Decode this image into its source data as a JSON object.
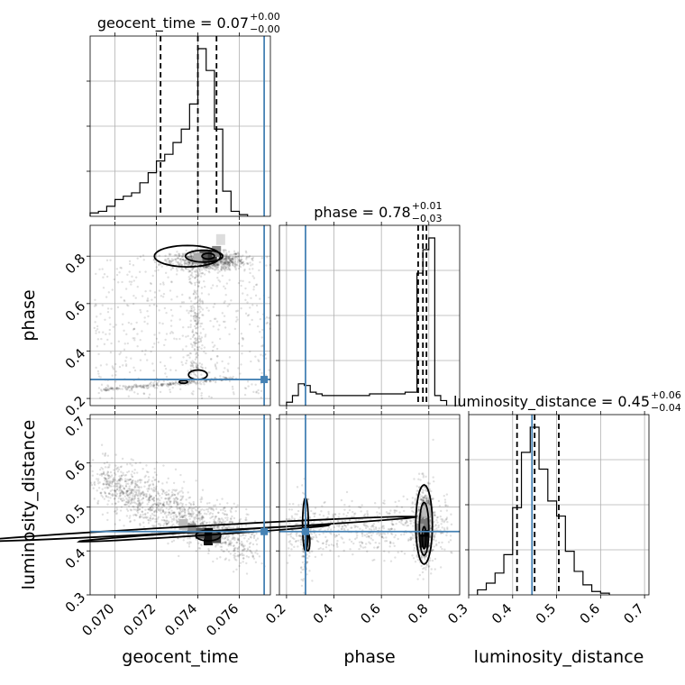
{
  "chart_data": {
    "type": "corner",
    "parameters": [
      "geocent_time",
      "phase",
      "luminosity_distance"
    ],
    "axis_labels": {
      "x": [
        "geocent_time",
        "phase",
        "luminosity_distance"
      ],
      "y": [
        "phase",
        "luminosity_distance"
      ]
    },
    "titles": [
      {
        "name": "geocent_time",
        "value": "0.07",
        "upper": "+0.00",
        "lower": "−0.00"
      },
      {
        "name": "phase",
        "value": "0.78",
        "upper": "+0.01",
        "lower": "−0.03"
      },
      {
        "name": "luminosity_distance",
        "value": "0.45",
        "upper": "+0.06",
        "lower": "−0.04"
      }
    ],
    "ranges": {
      "geocent_time": [
        0.0688,
        0.0775
      ],
      "phase": [
        0.17,
        0.93
      ],
      "luminosity_distance": [
        0.3,
        0.71
      ]
    },
    "ticks": {
      "geocent_time": [
        "0.070",
        "0.072",
        "0.074",
        "0.076"
      ],
      "phase": [
        "0.2",
        "0.4",
        "0.6",
        "0.8"
      ],
      "luminosity_distance": [
        "0.3",
        "0.4",
        "0.5",
        "0.6",
        "0.7"
      ]
    },
    "truths": {
      "geocent_time": 0.0772,
      "phase": 0.28,
      "luminosity_distance": 0.444
    },
    "quantiles": {
      "geocent_time": [
        0.0722,
        0.074,
        0.0749
      ],
      "phase": [
        0.755,
        0.775,
        0.79
      ],
      "luminosity_distance": [
        0.41,
        0.45,
        0.505
      ]
    },
    "histograms": {
      "geocent_time": {
        "edges": [
          0.0688,
          0.0692,
          0.0696,
          0.07,
          0.0704,
          0.0708,
          0.0712,
          0.0716,
          0.072,
          0.0724,
          0.0728,
          0.0732,
          0.0736,
          0.074,
          0.0744,
          0.0748,
          0.0752,
          0.0756,
          0.076,
          0.0764
        ],
        "counts": [
          2,
          3,
          6,
          10,
          12,
          14,
          20,
          26,
          33,
          37,
          44,
          52,
          67,
          100,
          87,
          52,
          15,
          3,
          1
        ]
      },
      "phase": {
        "edges": [
          0.2,
          0.225,
          0.25,
          0.275,
          0.3,
          0.325,
          0.35,
          0.375,
          0.4,
          0.425,
          0.45,
          0.475,
          0.5,
          0.525,
          0.55,
          0.575,
          0.6,
          0.625,
          0.65,
          0.675,
          0.7,
          0.725,
          0.75,
          0.775,
          0.8,
          0.825,
          0.85,
          0.875
        ],
        "counts": [
          2,
          6,
          13,
          12,
          8,
          7,
          6,
          6,
          6,
          6,
          6,
          6,
          6,
          6,
          7,
          7,
          7,
          7,
          7,
          7,
          8,
          8,
          79,
          93,
          100,
          6,
          3
        ]
      },
      "luminosity_distance": {
        "edges": [
          0.32,
          0.34,
          0.36,
          0.38,
          0.4,
          0.42,
          0.44,
          0.46,
          0.48,
          0.5,
          0.52,
          0.54,
          0.56,
          0.58,
          0.6,
          0.62
        ],
        "counts": [
          3,
          7,
          13,
          24,
          52,
          85,
          100,
          75,
          56,
          47,
          26,
          14,
          6,
          2,
          1
        ]
      }
    },
    "grid": true
  }
}
